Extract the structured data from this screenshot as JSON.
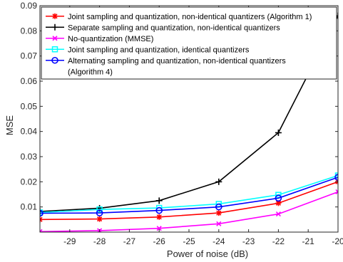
{
  "chart_data": {
    "type": "line",
    "xlabel": "Power of noise (dB)",
    "ylabel": "MSE",
    "xlim": [
      -30,
      -20
    ],
    "ylim": [
      0,
      0.09
    ],
    "x_ticks": [
      -29,
      -28,
      -27,
      -26,
      -25,
      -24,
      -23,
      -22,
      -21,
      -20
    ],
    "y_ticks": [
      0.01,
      0.02,
      0.03,
      0.04,
      0.05,
      0.06,
      0.07,
      0.08,
      0.09
    ],
    "y_tick_labels": [
      "0.01",
      "0.02",
      "0.03",
      "0.04",
      "0.05",
      "0.06",
      "0.07",
      "0.08",
      "0.09"
    ],
    "grid": false,
    "legend_position": "top",
    "x": [
      -30,
      -28,
      -26,
      -24,
      -22,
      -20
    ],
    "series": [
      {
        "name": "Joint sampling and quantization, non-identical quantizers (Algorithm 1)",
        "legend_lines": [
          "Joint sampling and quantization, non-identical quantizers (Algorithm 1)"
        ],
        "color": "#ff0000",
        "marker": "star",
        "values": [
          0.005,
          0.0052,
          0.006,
          0.0076,
          0.0115,
          0.02
        ]
      },
      {
        "name": "Separate sampling and quantization, non-identical quantizers",
        "legend_lines": [
          "Separate sampling and quantization, non-identical quantizers"
        ],
        "color": "#000000",
        "marker": "plus",
        "values": [
          0.0082,
          0.0095,
          0.0125,
          0.02,
          0.0395,
          0.086
        ]
      },
      {
        "name": "No-quantization (MMSE)",
        "legend_lines": [
          "No-quantization (MMSE)"
        ],
        "color": "#ff00ff",
        "marker": "x",
        "values": [
          0.0002,
          0.0006,
          0.0015,
          0.0033,
          0.0072,
          0.016
        ]
      },
      {
        "name": "Joint sampling and quantization, identical quantizers",
        "legend_lines": [
          "Joint sampling and quantization, identical quantizers"
        ],
        "color": "#00ffff",
        "marker": "square",
        "values": [
          0.0078,
          0.009,
          0.0096,
          0.0112,
          0.0148,
          0.0225
        ]
      },
      {
        "name": "Alternating sampling and quantization, non-identical quantizers (Algorithm 4)",
        "legend_lines": [
          "Alternating sampling and quantization, non-identical quantizers",
          "(Algorithm 4)"
        ],
        "color": "#0000ff",
        "marker": "circle",
        "values": [
          0.0075,
          0.0076,
          0.0086,
          0.01,
          0.0135,
          0.0218
        ]
      }
    ]
  }
}
